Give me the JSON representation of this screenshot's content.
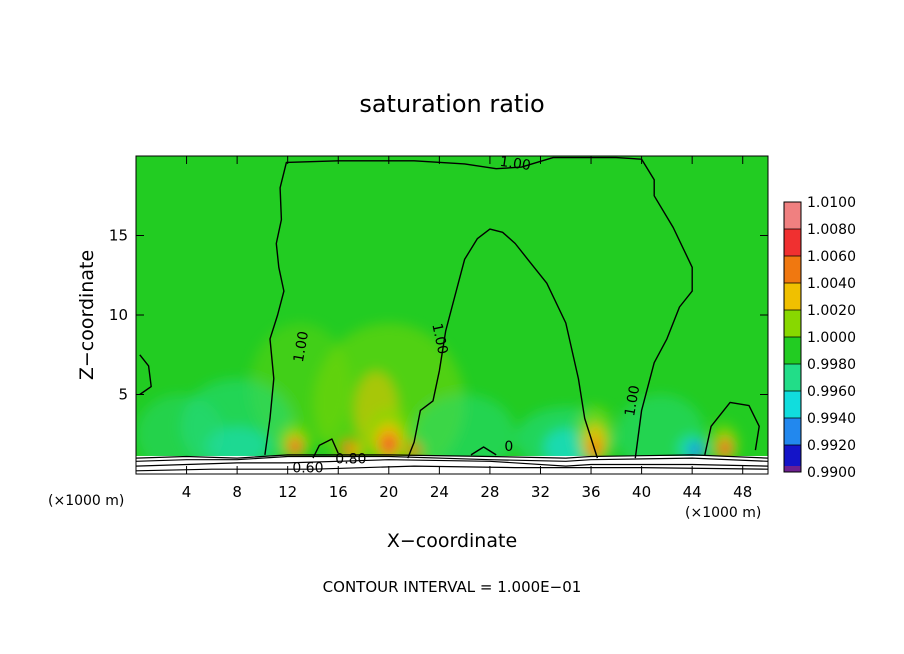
{
  "chart_data": {
    "type": "heatmap",
    "title": "saturation ratio",
    "xlabel": "X−coordinate",
    "ylabel": "Z−coordinate",
    "x_unit_left": "(×1000 m)",
    "x_unit_right": "(×1000 m)",
    "footer": "CONTOUR INTERVAL = 1.000E−01",
    "xlim": [
      0,
      50
    ],
    "ylim": [
      0,
      20
    ],
    "x_ticks": [
      4,
      8,
      12,
      16,
      20,
      24,
      28,
      32,
      36,
      40,
      44,
      48
    ],
    "x_tick_labels": [
      "4",
      "8",
      "12",
      "16",
      "20",
      "24",
      "28",
      "32",
      "36",
      "40",
      "44",
      "48"
    ],
    "y_ticks": [
      5,
      10,
      15
    ],
    "y_tick_labels": [
      "5",
      "10",
      "15"
    ],
    "background_color": "#22cc22",
    "colorbar": {
      "levels": [
        "1.0100",
        "1.0080",
        "1.0060",
        "1.0040",
        "1.0020",
        "1.0000",
        "0.9980",
        "0.9960",
        "0.9940",
        "0.9920",
        "0.9900"
      ],
      "colors": [
        "#f08080",
        "#f03030",
        "#f07810",
        "#f0c000",
        "#88d800",
        "#22cc22",
        "#22dd88",
        "#11dddd",
        "#2288ee",
        "#1414c8",
        "#6c2090"
      ]
    },
    "contour_labels": [
      {
        "text": "1.00",
        "x": 13.1,
        "z": 8.0,
        "rot": -80
      },
      {
        "text": "1.00",
        "x": 30.0,
        "z": 19.5,
        "rot": 8
      },
      {
        "text": "1.00",
        "x": 24.0,
        "z": 8.5,
        "rot": 78
      },
      {
        "text": "1.00",
        "x": 39.3,
        "z": 4.6,
        "rot": -80
      },
      {
        "text": "0",
        "x": 29.5,
        "z": 1.7,
        "rot": 0
      },
      {
        "text": "0.60",
        "x": 13.6,
        "z": 0.35,
        "rot": 0
      },
      {
        "text": "0.80",
        "x": 17.0,
        "z": 0.9,
        "rot": 0
      }
    ],
    "blobs": [
      {
        "x": 20.0,
        "z": 4.5,
        "rx": 6.0,
        "rz": 5.0,
        "color": "#88d800",
        "op": 0.45
      },
      {
        "x": 13.0,
        "z": 5.5,
        "rx": 4.0,
        "rz": 4.0,
        "color": "#88d800",
        "op": 0.3
      },
      {
        "x": 19.0,
        "z": 4.0,
        "rx": 1.8,
        "rz": 2.5,
        "color": "#f0c000",
        "op": 0.55
      },
      {
        "x": 8.0,
        "z": 3.0,
        "rx": 4.5,
        "rz": 3.0,
        "color": "#22dd88",
        "op": 0.5
      },
      {
        "x": 8.0,
        "z": 1.8,
        "rx": 2.5,
        "rz": 1.2,
        "color": "#11dddd",
        "op": 0.45
      },
      {
        "x": 3.5,
        "z": 2.5,
        "rx": 3.5,
        "rz": 2.5,
        "color": "#22dd88",
        "op": 0.4
      },
      {
        "x": 26.0,
        "z": 2.5,
        "rx": 4.0,
        "rz": 2.5,
        "color": "#22dd88",
        "op": 0.45
      },
      {
        "x": 34.0,
        "z": 2.2,
        "rx": 4.0,
        "rz": 2.0,
        "color": "#22dd88",
        "op": 0.55
      },
      {
        "x": 34.0,
        "z": 1.7,
        "rx": 1.8,
        "rz": 1.2,
        "color": "#11dddd",
        "op": 0.65
      },
      {
        "x": 41.5,
        "z": 2.5,
        "rx": 3.5,
        "rz": 2.5,
        "color": "#22dd88",
        "op": 0.45
      },
      {
        "x": 44.0,
        "z": 1.6,
        "rx": 1.2,
        "rz": 0.9,
        "color": "#11dddd",
        "op": 0.6
      },
      {
        "x": 44.3,
        "z": 1.5,
        "rx": 0.6,
        "rz": 0.5,
        "color": "#2288ee",
        "op": 0.85
      },
      {
        "x": 36.3,
        "z": 2.5,
        "rx": 1.5,
        "rz": 1.8,
        "color": "#88d800",
        "op": 0.6
      },
      {
        "x": 36.3,
        "z": 2.0,
        "rx": 0.9,
        "rz": 1.2,
        "color": "#f0c000",
        "op": 0.85
      },
      {
        "x": 36.3,
        "z": 1.6,
        "rx": 0.5,
        "rz": 0.6,
        "color": "#f07810",
        "op": 0.95
      },
      {
        "x": 20.0,
        "z": 2.4,
        "rx": 1.8,
        "rz": 1.8,
        "color": "#88d800",
        "op": 0.7
      },
      {
        "x": 20.0,
        "z": 2.1,
        "rx": 1.1,
        "rz": 1.1,
        "color": "#f0c000",
        "op": 0.9
      },
      {
        "x": 20.0,
        "z": 1.9,
        "rx": 0.7,
        "rz": 0.7,
        "color": "#f07810",
        "op": 0.95
      },
      {
        "x": 20.0,
        "z": 1.8,
        "rx": 0.4,
        "rz": 0.4,
        "color": "#f03030",
        "op": 0.95
      },
      {
        "x": 12.5,
        "z": 2.0,
        "rx": 1.2,
        "rz": 1.2,
        "color": "#88d800",
        "op": 0.7
      },
      {
        "x": 12.6,
        "z": 1.8,
        "rx": 0.7,
        "rz": 0.7,
        "color": "#f0c000",
        "op": 0.9
      },
      {
        "x": 12.6,
        "z": 1.7,
        "rx": 0.45,
        "rz": 0.45,
        "color": "#f03030",
        "op": 0.95
      },
      {
        "x": 16.8,
        "z": 1.6,
        "rx": 0.6,
        "rz": 0.6,
        "color": "#f07810",
        "op": 0.9
      },
      {
        "x": 17.5,
        "z": 1.5,
        "rx": 0.5,
        "rz": 0.5,
        "color": "#f0c000",
        "op": 0.8
      },
      {
        "x": 22.0,
        "z": 1.5,
        "rx": 0.6,
        "rz": 0.5,
        "color": "#f07810",
        "op": 0.85
      },
      {
        "x": 46.5,
        "z": 1.9,
        "rx": 1.2,
        "rz": 1.3,
        "color": "#88d800",
        "op": 0.6
      },
      {
        "x": 46.6,
        "z": 1.7,
        "rx": 0.7,
        "rz": 0.8,
        "color": "#f0c000",
        "op": 0.85
      },
      {
        "x": 46.6,
        "z": 1.6,
        "rx": 0.45,
        "rz": 0.5,
        "color": "#f03030",
        "op": 0.95
      }
    ],
    "contour_lines": [
      [
        [
          10.2,
          1.2
        ],
        [
          10.6,
          3.5
        ],
        [
          10.9,
          6.0
        ],
        [
          10.6,
          8.5
        ],
        [
          11.2,
          10.0
        ],
        [
          11.7,
          11.5
        ],
        [
          11.3,
          13.0
        ],
        [
          11.1,
          14.5
        ],
        [
          11.5,
          16.0
        ],
        [
          11.4,
          18.0
        ],
        [
          11.9,
          19.6
        ],
        [
          16.0,
          19.7
        ],
        [
          22.0,
          19.7
        ],
        [
          26.0,
          19.5
        ],
        [
          28.5,
          19.2
        ],
        [
          30.5,
          19.3
        ],
        [
          33.0,
          19.9
        ],
        [
          38.0,
          19.9
        ],
        [
          40.0,
          19.8
        ],
        [
          41.0,
          18.5
        ],
        [
          41.0,
          17.5
        ],
        [
          42.5,
          15.5
        ],
        [
          44.0,
          13.0
        ],
        [
          44.0,
          11.5
        ],
        [
          43.0,
          10.5
        ],
        [
          42.0,
          8.5
        ],
        [
          41.0,
          7.0
        ],
        [
          40.0,
          4.0
        ],
        [
          39.5,
          1.0
        ]
      ],
      [
        [
          14.0,
          1.0
        ],
        [
          14.5,
          1.8
        ],
        [
          15.5,
          2.2
        ],
        [
          16.0,
          1.3
        ]
      ],
      [
        [
          21.5,
          1.0
        ],
        [
          22.0,
          2.0
        ],
        [
          22.5,
          4.0
        ],
        [
          23.5,
          4.6
        ],
        [
          24.0,
          6.5
        ],
        [
          24.5,
          9.0
        ],
        [
          25.0,
          10.5
        ],
        [
          25.5,
          12.0
        ],
        [
          26.0,
          13.5
        ],
        [
          27.0,
          14.8
        ],
        [
          28.0,
          15.4
        ],
        [
          29.0,
          15.2
        ],
        [
          30.0,
          14.5
        ],
        [
          31.0,
          13.5
        ],
        [
          32.5,
          12.0
        ],
        [
          34.0,
          9.5
        ],
        [
          35.0,
          6.0
        ],
        [
          35.5,
          3.5
        ],
        [
          36.5,
          1.0
        ]
      ],
      [
        [
          26.5,
          1.2
        ],
        [
          27.5,
          1.7
        ],
        [
          28.5,
          1.2
        ]
      ],
      [
        [
          0.3,
          7.5
        ],
        [
          1.0,
          6.8
        ],
        [
          1.2,
          5.5
        ],
        [
          0.3,
          5.0
        ]
      ],
      [
        [
          45.0,
          1.2
        ],
        [
          45.5,
          3.0
        ],
        [
          47.0,
          4.5
        ],
        [
          48.5,
          4.3
        ],
        [
          49.3,
          3.0
        ],
        [
          49.0,
          1.5
        ]
      ]
    ],
    "surface_lines": [
      [
        [
          0.0,
          0.5
        ],
        [
          4.0,
          0.6
        ],
        [
          8.0,
          0.7
        ],
        [
          12.0,
          0.7
        ],
        [
          20.0,
          0.9
        ],
        [
          28.0,
          0.8
        ],
        [
          34.0,
          0.5
        ],
        [
          36.0,
          0.6
        ],
        [
          44.0,
          0.6
        ],
        [
          50.0,
          0.5
        ]
      ],
      [
        [
          0.0,
          0.8
        ],
        [
          4.0,
          0.9
        ],
        [
          8.0,
          0.9
        ],
        [
          12.0,
          1.1
        ],
        [
          20.0,
          1.1
        ],
        [
          28.0,
          0.9
        ],
        [
          34.0,
          0.8
        ],
        [
          36.0,
          0.9
        ],
        [
          44.0,
          1.0
        ],
        [
          50.0,
          0.8
        ]
      ],
      [
        [
          0.0,
          1.0
        ],
        [
          4.0,
          1.1
        ],
        [
          8.0,
          1.0
        ],
        [
          12.0,
          1.2
        ],
        [
          20.0,
          1.2
        ],
        [
          28.0,
          1.1
        ],
        [
          34.0,
          1.0
        ],
        [
          36.0,
          1.1
        ],
        [
          44.0,
          1.2
        ],
        [
          50.0,
          1.0
        ]
      ],
      [
        [
          0.0,
          0.2
        ],
        [
          6.0,
          0.3
        ],
        [
          14.0,
          0.3
        ],
        [
          22.0,
          0.5
        ],
        [
          30.0,
          0.4
        ],
        [
          40.0,
          0.4
        ],
        [
          50.0,
          0.3
        ]
      ]
    ]
  }
}
